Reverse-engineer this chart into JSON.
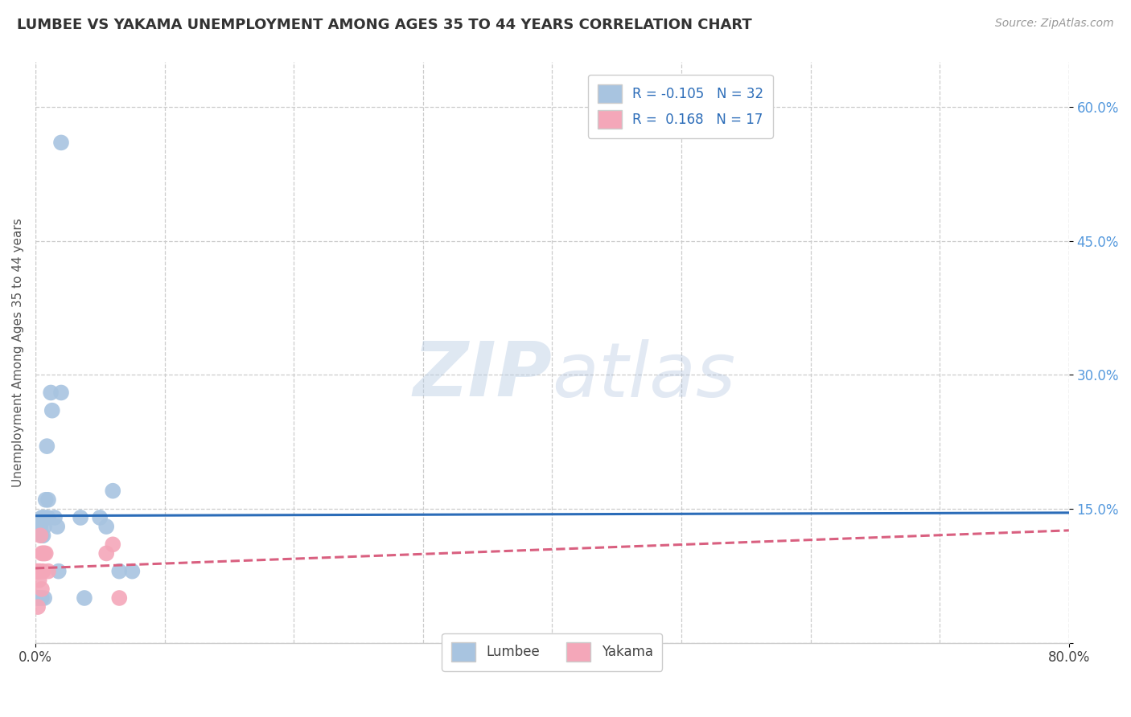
{
  "title": "LUMBEE VS YAKAMA UNEMPLOYMENT AMONG AGES 35 TO 44 YEARS CORRELATION CHART",
  "source": "Source: ZipAtlas.com",
  "ylabel": "Unemployment Among Ages 35 to 44 years",
  "lumbee_R": -0.105,
  "lumbee_N": 32,
  "yakama_R": 0.168,
  "yakama_N": 17,
  "lumbee_color": "#a8c4e0",
  "yakama_color": "#f4a7b9",
  "lumbee_line_color": "#2b6cb8",
  "yakama_line_color": "#d96080",
  "watermark_zip": "ZIP",
  "watermark_atlas": "atlas",
  "background_color": "#ffffff",
  "lumbee_x": [
    0.001,
    0.002,
    0.003,
    0.003,
    0.004,
    0.004,
    0.005,
    0.005,
    0.005,
    0.006,
    0.006,
    0.007,
    0.007,
    0.008,
    0.008,
    0.009,
    0.01,
    0.01,
    0.012,
    0.013,
    0.015,
    0.017,
    0.018,
    0.02,
    0.02,
    0.035,
    0.038,
    0.05,
    0.055,
    0.06,
    0.065,
    0.075
  ],
  "lumbee_y": [
    0.05,
    0.05,
    0.13,
    0.05,
    0.13,
    0.05,
    0.12,
    0.14,
    0.05,
    0.12,
    0.14,
    0.05,
    0.13,
    0.14,
    0.16,
    0.22,
    0.14,
    0.16,
    0.28,
    0.26,
    0.14,
    0.13,
    0.08,
    0.28,
    0.56,
    0.14,
    0.05,
    0.14,
    0.13,
    0.17,
    0.08,
    0.08
  ],
  "yakama_x": [
    0.001,
    0.002,
    0.002,
    0.003,
    0.003,
    0.004,
    0.004,
    0.005,
    0.005,
    0.006,
    0.006,
    0.007,
    0.008,
    0.01,
    0.055,
    0.06,
    0.065
  ],
  "yakama_y": [
    0.08,
    0.04,
    0.08,
    0.07,
    0.08,
    0.08,
    0.12,
    0.1,
    0.06,
    0.1,
    0.08,
    0.1,
    0.1,
    0.08,
    0.1,
    0.11,
    0.05
  ],
  "xmin": 0.0,
  "xmax": 0.8,
  "ymin": 0.0,
  "ymax": 0.65,
  "ytick_positions": [
    0.0,
    0.15,
    0.3,
    0.45,
    0.6
  ],
  "ytick_labels": [
    "",
    "15.0%",
    "30.0%",
    "45.0%",
    "60.0%"
  ]
}
